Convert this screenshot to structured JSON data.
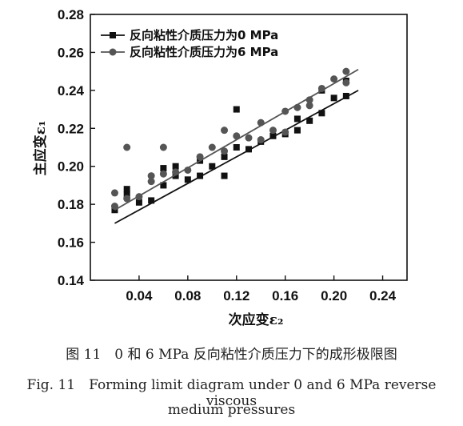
{
  "chart_data": {
    "type": "scatter",
    "xlabel": "次应变ε₂",
    "ylabel": "主应变ε₁",
    "xlim": [
      0.0,
      0.26
    ],
    "ylim": [
      0.14,
      0.28
    ],
    "xticks": [
      "0.04",
      "0.08",
      "0.12",
      "0.16",
      "0.20",
      "0.24"
    ],
    "yticks": [
      "0.14",
      "0.16",
      "0.18",
      "0.20",
      "0.22",
      "0.24",
      "0.26",
      "0.28"
    ],
    "legend_position": "top-left",
    "grid": false,
    "series": [
      {
        "name": "反向粘性介质压力为0 MPa",
        "marker": "square",
        "color": "#111111",
        "points": [
          [
            0.02,
            0.177
          ],
          [
            0.03,
            0.185
          ],
          [
            0.03,
            0.188
          ],
          [
            0.04,
            0.181
          ],
          [
            0.05,
            0.182
          ],
          [
            0.06,
            0.19
          ],
          [
            0.06,
            0.199
          ],
          [
            0.07,
            0.195
          ],
          [
            0.07,
            0.2
          ],
          [
            0.08,
            0.193
          ],
          [
            0.09,
            0.195
          ],
          [
            0.09,
            0.203
          ],
          [
            0.1,
            0.2
          ],
          [
            0.11,
            0.195
          ],
          [
            0.11,
            0.205
          ],
          [
            0.12,
            0.21
          ],
          [
            0.12,
            0.23
          ],
          [
            0.13,
            0.209
          ],
          [
            0.14,
            0.213
          ],
          [
            0.15,
            0.216
          ],
          [
            0.16,
            0.217
          ],
          [
            0.17,
            0.219
          ],
          [
            0.17,
            0.225
          ],
          [
            0.18,
            0.224
          ],
          [
            0.19,
            0.228
          ],
          [
            0.19,
            0.24
          ],
          [
            0.2,
            0.236
          ],
          [
            0.21,
            0.237
          ],
          [
            0.21,
            0.245
          ]
        ],
        "fit_line": [
          [
            0.02,
            0.17
          ],
          [
            0.22,
            0.24
          ]
        ]
      },
      {
        "name": "反向粘性介质压力为6 MPa",
        "marker": "circle",
        "color": "#555555",
        "points": [
          [
            0.02,
            0.179
          ],
          [
            0.02,
            0.186
          ],
          [
            0.03,
            0.183
          ],
          [
            0.03,
            0.21
          ],
          [
            0.04,
            0.184
          ],
          [
            0.05,
            0.192
          ],
          [
            0.05,
            0.195
          ],
          [
            0.06,
            0.196
          ],
          [
            0.06,
            0.21
          ],
          [
            0.07,
            0.197
          ],
          [
            0.08,
            0.198
          ],
          [
            0.09,
            0.205
          ],
          [
            0.1,
            0.21
          ],
          [
            0.11,
            0.208
          ],
          [
            0.11,
            0.219
          ],
          [
            0.12,
            0.216
          ],
          [
            0.13,
            0.215
          ],
          [
            0.14,
            0.214
          ],
          [
            0.14,
            0.223
          ],
          [
            0.15,
            0.219
          ],
          [
            0.16,
            0.218
          ],
          [
            0.16,
            0.229
          ],
          [
            0.17,
            0.231
          ],
          [
            0.18,
            0.232
          ],
          [
            0.18,
            0.235
          ],
          [
            0.19,
            0.241
          ],
          [
            0.2,
            0.246
          ],
          [
            0.21,
            0.244
          ],
          [
            0.21,
            0.25
          ]
        ],
        "fit_line": [
          [
            0.02,
            0.177
          ],
          [
            0.22,
            0.251
          ]
        ]
      }
    ]
  },
  "captions": {
    "chinese": "图 11　0 和 6 MPa 反向粘性介质压力下的成形极限图",
    "english_line1": "Fig. 11　Forming limit diagram under 0 and 6 MPa reverse viscous",
    "english_line2": "medium pressures"
  }
}
